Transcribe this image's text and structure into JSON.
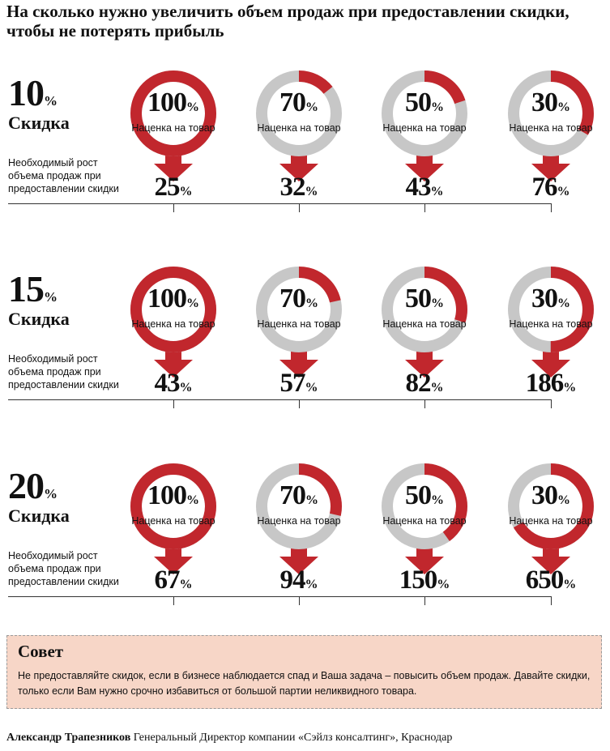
{
  "title": "На сколько нужно увеличить объем продаж при предоставлении скидки, чтобы не потерять прибыль",
  "discount_label": "Скидка",
  "growth_label": "Необходимый рост объема продаж при предоставлении скидки",
  "markup_label": "Наценка на товар",
  "percent_sign": "%",
  "colors": {
    "red": "#c1272d",
    "gray": "#c7c7c7",
    "advice_bg": "#f7d6c7"
  },
  "chart_data": {
    "type": "donut",
    "title": "На сколько нужно увеличить объем продаж при предоставлении скидки, чтобы не потерять прибыль",
    "markups": [
      100,
      70,
      50,
      30
    ],
    "markup_unit": "%",
    "series": [
      {
        "discount": 10,
        "label": "Скидка",
        "required_growth": [
          25,
          32,
          43,
          76
        ]
      },
      {
        "discount": 15,
        "label": "Скидка",
        "required_growth": [
          43,
          57,
          82,
          186
        ]
      },
      {
        "discount": 20,
        "label": "Скидка",
        "required_growth": [
          67,
          94,
          150,
          650
        ]
      }
    ]
  },
  "advice": {
    "title": "Совет",
    "text": "Не предоставляйте скидок, если в бизнесе наблюдается спад и Ваша задача – повысить объем продаж. Давайте скидки, только если Вам нужно срочно избавиться от большой партии неликвидного товара."
  },
  "footer": {
    "author": "Александр Трапезников",
    "position": "Генеральный Директор компании «Сэйлз консалтинг», Краснодар"
  }
}
